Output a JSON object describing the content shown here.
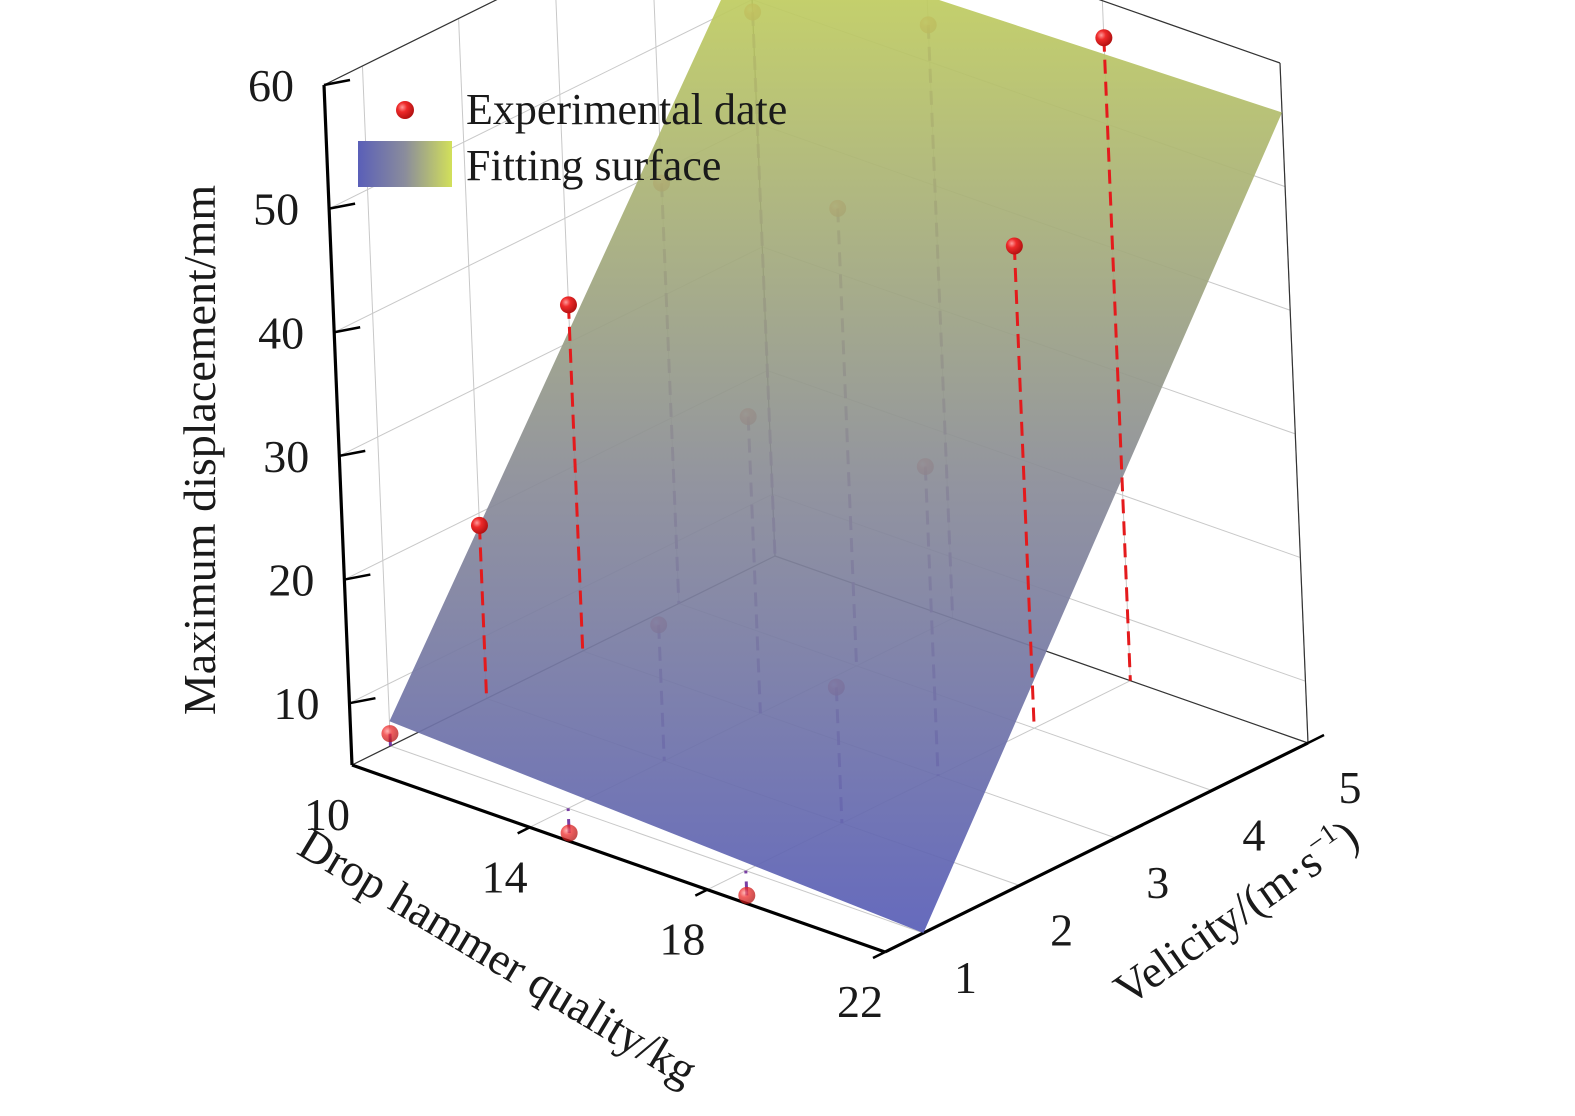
{
  "chart_data": {
    "type": "scatter",
    "subtype": "3d-scatter-with-fitted-surface",
    "xlabel": "Drop hammer quality/kg",
    "ylabel": "Velicity/(m·s",
    "ylabel_superscript": "−1",
    "ylabel_suffix": ")",
    "zlabel": "Maximum displacement/mm",
    "x_ticks": [
      "10",
      "14",
      "18",
      "22"
    ],
    "y_ticks": [
      "1",
      "2",
      "3",
      "4",
      "5"
    ],
    "z_ticks": [
      "10",
      "20",
      "30",
      "40",
      "50",
      "60"
    ],
    "xlim": [
      10,
      22
    ],
    "ylim": [
      0.6,
      5
    ],
    "zlim": [
      5,
      60
    ],
    "grid": true,
    "legend_position": "top-left",
    "legend": {
      "points_label": "Experimental date",
      "surface_label": "Fitting surface"
    },
    "colors": {
      "points": "#e41a1c",
      "drop_lines": "#e41a1c",
      "surface_low": "#5a5fb8",
      "surface_high": "#c6d45a",
      "axes": "#000000",
      "grid": "#c8c8c8"
    },
    "surface": {
      "x_range": [
        10,
        22
      ],
      "y_range": [
        1,
        5
      ],
      "corner_z": {
        "x10_y1": 7,
        "x22_y1": 5,
        "x10_y5": 55,
        "x22_y5": 56
      }
    },
    "points": [
      {
        "x": 10,
        "y": 1,
        "z": 6
      },
      {
        "x": 10,
        "y": 2,
        "z": 19
      },
      {
        "x": 10,
        "y": 3,
        "z": 33
      },
      {
        "x": 10,
        "y": 4,
        "z": 39
      },
      {
        "x": 10,
        "y": 5,
        "z": 49
      },
      {
        "x": 14,
        "y": 1,
        "z": 3
      },
      {
        "x": 14,
        "y": 2,
        "z": 16
      },
      {
        "x": 14,
        "y": 3,
        "z": 29
      },
      {
        "x": 14,
        "y": 4,
        "z": 42
      },
      {
        "x": 14,
        "y": 5,
        "z": 53
      },
      {
        "x": 18,
        "y": 1,
        "z": 3
      },
      {
        "x": 18,
        "y": 2,
        "z": 16
      },
      {
        "x": 18,
        "y": 3,
        "z": 30
      },
      {
        "x": 18,
        "y": 4,
        "z": 44
      },
      {
        "x": 18,
        "y": 5,
        "z": 57
      }
    ]
  }
}
